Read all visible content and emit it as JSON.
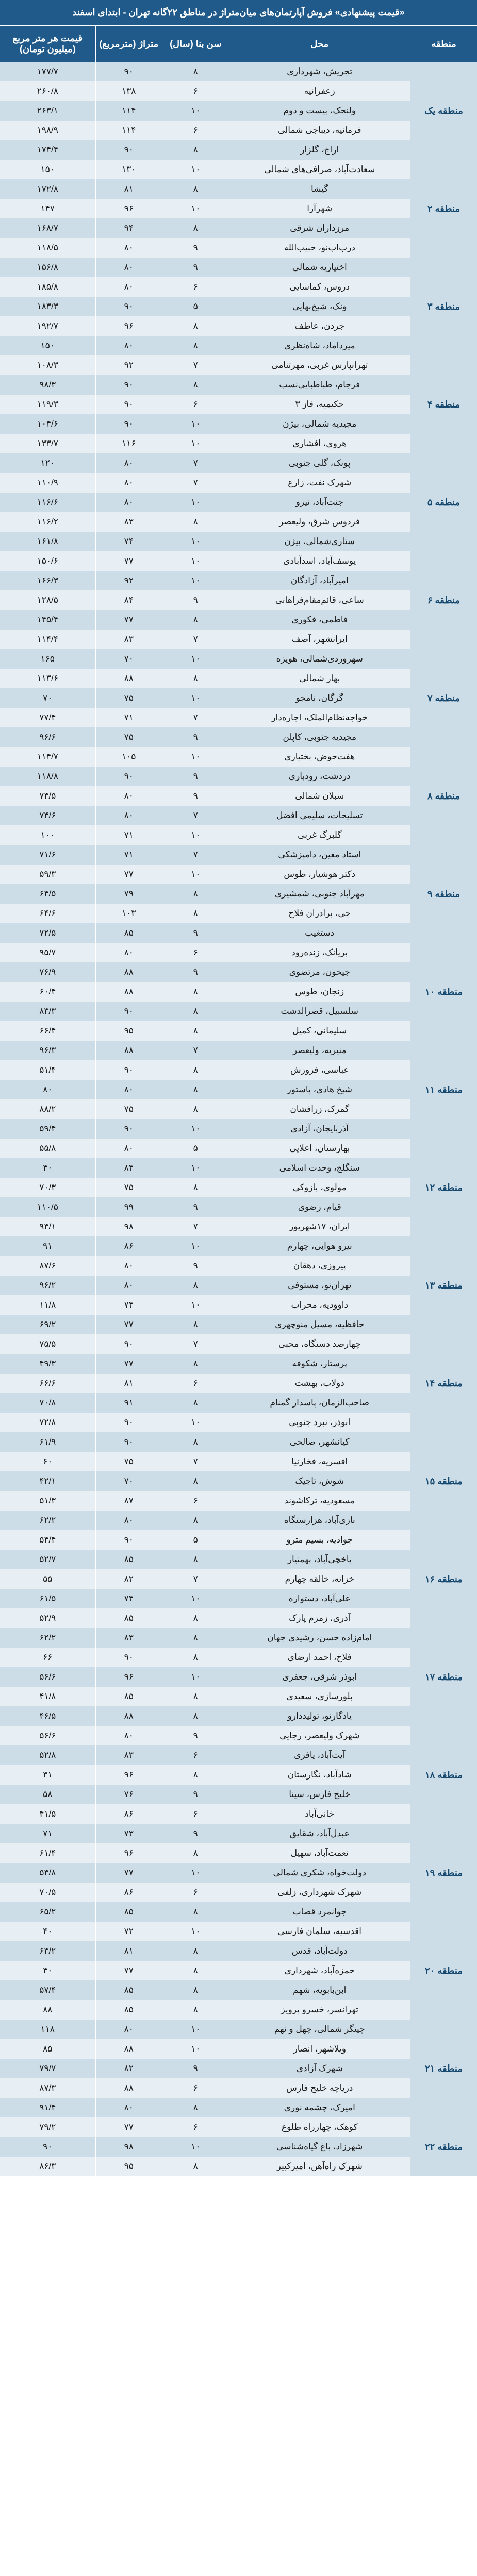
{
  "title": "«قیمت پیشنهادی» فروش آپارتمان‌های میان‌متراژ در مناطق ۲۲گانه تهران - ابتدای اسفند",
  "colors": {
    "header_bg": "#1f5a8a",
    "header_text": "#ffffff",
    "row_odd_bg": "#cddde8",
    "row_even_bg": "#e8eff4",
    "text": "#1a1a1a",
    "region_text": "#16496f"
  },
  "fonts": {
    "header_size_pt": 18,
    "cell_size_pt": 17
  },
  "columns": [
    {
      "key": "region",
      "label": "منطقه",
      "width_pct": 14
    },
    {
      "key": "neighborhood",
      "label": "محل",
      "width_pct": 38
    },
    {
      "key": "age",
      "label": "سن بنا (سال)",
      "width_pct": 14
    },
    {
      "key": "area",
      "label": "متراژ (مترمربع)",
      "width_pct": 14
    },
    {
      "key": "price",
      "label": "قیمت هر متر مربع (میلیون تومان)",
      "width_pct": 20
    }
  ],
  "regions": [
    {
      "name": "منطقه یک",
      "rows": [
        {
          "neighborhood": "تجریش، شهرداری",
          "age": "۸",
          "area": "۹۰",
          "price": "۱۷۷/۷"
        },
        {
          "neighborhood": "زعفرانیه",
          "age": "۶",
          "area": "۱۳۸",
          "price": "۲۶۰/۸"
        },
        {
          "neighborhood": "ولنجک، بیست و دوم",
          "age": "۱۰",
          "area": "۱۱۴",
          "price": "۲۶۳/۱"
        },
        {
          "neighborhood": "فرمانیه، دیباجی شمالی",
          "age": "۶",
          "area": "۱۱۴",
          "price": "۱۹۸/۹"
        },
        {
          "neighborhood": "اراج، گلزار",
          "age": "۸",
          "area": "۹۰",
          "price": "۱۷۴/۴"
        }
      ]
    },
    {
      "name": "منطقه ۲",
      "rows": [
        {
          "neighborhood": "سعادت‌آباد، صرافی‌های شمالی",
          "age": "۱۰",
          "area": "۱۳۰",
          "price": "۱۵۰"
        },
        {
          "neighborhood": "گیشا",
          "age": "۸",
          "area": "۸۱",
          "price": "۱۷۲/۸"
        },
        {
          "neighborhood": "شهرآرا",
          "age": "۱۰",
          "area": "۹۶",
          "price": "۱۴۷"
        },
        {
          "neighborhood": "مرزداران شرقی",
          "age": "۸",
          "area": "۹۴",
          "price": "۱۶۸/۷"
        },
        {
          "neighborhood": "درب‌اب‌نو، حبیب‌الله",
          "age": "۹",
          "area": "۸۰",
          "price": "۱۱۸/۵"
        }
      ]
    },
    {
      "name": "منطقه ۳",
      "rows": [
        {
          "neighborhood": "اختیاریه شمالی",
          "age": "۹",
          "area": "۸۰",
          "price": "۱۵۶/۸"
        },
        {
          "neighborhood": "دروس، کماسایی",
          "age": "۶",
          "area": "۸۰",
          "price": "۱۸۵/۸"
        },
        {
          "neighborhood": "ونک، شیخ‌بهایی",
          "age": "۵",
          "area": "۹۰",
          "price": "۱۸۳/۳"
        },
        {
          "neighborhood": "جردن، ‌عاطف",
          "age": "۸",
          "area": "۹۶",
          "price": "۱۹۲/۷"
        },
        {
          "neighborhood": "میرداماد، شاه‌نظری",
          "age": "۸",
          "area": "۸۰",
          "price": "۱۵۰"
        }
      ]
    },
    {
      "name": "منطقه ۴",
      "rows": [
        {
          "neighborhood": "تهرانپارس غربی، مهرتنامی",
          "age": "۷",
          "area": "۹۲",
          "price": "۱۰۸/۳"
        },
        {
          "neighborhood": "فرجام، طباطبایی‌نسب",
          "age": "۸",
          "area": "۹۰",
          "price": "۹۸/۳"
        },
        {
          "neighborhood": "حکیمیه، فاز ۳",
          "age": "۶",
          "area": "۹۰",
          "price": "۱۱۹/۳"
        },
        {
          "neighborhood": "مجیدیه شمالی، بیژن",
          "age": "۱۰",
          "area": "۹۰",
          "price": "۱۰۴/۶"
        },
        {
          "neighborhood": "هروی، افشاری",
          "age": "۱۰",
          "area": "۱۱۶",
          "price": "۱۳۳/۷"
        }
      ]
    },
    {
      "name": "منطقه ۵",
      "rows": [
        {
          "neighborhood": "پونک، گلی جنوبی",
          "age": "۷",
          "area": "۸۰",
          "price": "۱۲۰"
        },
        {
          "neighborhood": "شهرک نفت، زارع",
          "age": "۷",
          "area": "۸۰",
          "price": "۱۱۰/۹"
        },
        {
          "neighborhood": "جنت‌آباد، نیرو",
          "age": "۱۰",
          "area": "۸۰",
          "price": "۱۱۶/۶"
        },
        {
          "neighborhood": "فردوس شرق، ولیعصر",
          "age": "۸",
          "area": "۸۳",
          "price": "۱۱۶/۲"
        },
        {
          "neighborhood": "ستاری‌شمالی، بیژن",
          "age": "۱۰",
          "area": "۷۴",
          "price": "۱۶۱/۸"
        }
      ]
    },
    {
      "name": "منطقه ۶",
      "rows": [
        {
          "neighborhood": "یوسف‌آباد، اسدآبادی",
          "age": "۱۰",
          "area": "۷۷",
          "price": "۱۵۰/۶"
        },
        {
          "neighborhood": "امیرآباد، آزادگان",
          "age": "۱۰",
          "area": "۹۲",
          "price": "۱۶۶/۳"
        },
        {
          "neighborhood": "ساعی، قائم‌مقام‌فراهانی",
          "age": "۹",
          "area": "۸۴",
          "price": "۱۲۸/۵"
        },
        {
          "neighborhood": "فاطمی، فکوری",
          "age": "۸",
          "area": "۷۷",
          "price": "۱۴۵/۴"
        },
        {
          "neighborhood": "ایرانشهر، آصف",
          "age": "۷",
          "area": "۸۳",
          "price": "۱۱۴/۴"
        }
      ]
    },
    {
      "name": "منطقه ۷",
      "rows": [
        {
          "neighborhood": "سهروردی‌شمالی، هویزه",
          "age": "۱۰",
          "area": "۷۰",
          "price": "۱۶۵"
        },
        {
          "neighborhood": "بهار شمالی",
          "age": "۸",
          "area": "۸۸",
          "price": "۱۱۳/۶"
        },
        {
          "neighborhood": "گرگان، نامجو",
          "age": "۱۰",
          "area": "۷۵",
          "price": "۷۰"
        },
        {
          "neighborhood": "خواجه‌نظام‌الملک، اجاره‌دار",
          "age": "۷",
          "area": "۷۱",
          "price": "۷۷/۴"
        },
        {
          "neighborhood": "مجیدیه جنوبی، کاپلن",
          "age": "۹",
          "area": "۷۵",
          "price": "۹۶/۶"
        }
      ]
    },
    {
      "name": "منطقه ۸",
      "rows": [
        {
          "neighborhood": "هفت‌حوض، بختیاری",
          "age": "۱۰",
          "area": "۱۰۵",
          "price": "۱۱۴/۷"
        },
        {
          "neighborhood": "دردشت، رودباری",
          "age": "۹",
          "area": "۹۰",
          "price": "۱۱۸/۸"
        },
        {
          "neighborhood": "سبلان شمالی",
          "age": "۹",
          "area": "۸۰",
          "price": "۷۳/۵"
        },
        {
          "neighborhood": "تسلیحات، سلیمی افضل",
          "age": "۷",
          "area": "۸۰",
          "price": "۷۴/۶"
        },
        {
          "neighborhood": "گلبرگ غربی",
          "age": "۱۰",
          "area": "۷۱",
          "price": "۱۰۰"
        }
      ]
    },
    {
      "name": "منطقه ۹",
      "rows": [
        {
          "neighborhood": "استاد معین، دامپزشکی",
          "age": "۷",
          "area": "۷۱",
          "price": "۷۱/۶"
        },
        {
          "neighborhood": "دکتر هوشیار، طوس",
          "age": "۱۰",
          "area": "۷۷",
          "price": "۵۹/۳"
        },
        {
          "neighborhood": "مهرآباد جنوبی، شمشیری",
          "age": "۸",
          "area": "۷۹",
          "price": "۶۴/۵"
        },
        {
          "neighborhood": "جی، برادران فلاح",
          "age": "۸",
          "area": "۱۰۳",
          "price": "۶۴/۶"
        },
        {
          "neighborhood": "دستغیب",
          "age": "۹",
          "area": "۸۵",
          "price": "۷۲/۵"
        }
      ]
    },
    {
      "name": "منطقه ۱۰",
      "rows": [
        {
          "neighborhood": "بریانک، زنده‌رود",
          "age": "۶",
          "area": "۸۰",
          "price": "۹۵/۷"
        },
        {
          "neighborhood": "جیحون، مرتضوی",
          "age": "۹",
          "area": "۸۸",
          "price": "۷۶/۹"
        },
        {
          "neighborhood": "زنجان، طوس",
          "age": "۸",
          "area": "۸۸",
          "price": "۶۰/۴"
        },
        {
          "neighborhood": "سلسبیل، قصرالدشت",
          "age": "۸",
          "area": "۹۰",
          "price": "۸۳/۳"
        },
        {
          "neighborhood": "سلیمانی، کمیل",
          "age": "۸",
          "area": "۹۵",
          "price": "۶۶/۴"
        }
      ]
    },
    {
      "name": "منطقه ۱۱",
      "rows": [
        {
          "neighborhood": "منیریه، ولیعصر",
          "age": "۷",
          "area": "۸۸",
          "price": "۹۶/۳"
        },
        {
          "neighborhood": "عباسی، فروزش",
          "age": "۸",
          "area": "۹۰",
          "price": "۵۱/۴"
        },
        {
          "neighborhood": "شیخ هادی، پاستور",
          "age": "۸",
          "area": "۸۰",
          "price": "۸۰"
        },
        {
          "neighborhood": "گمرک، زرافشان",
          "age": "۸",
          "area": "۷۵",
          "price": "۸۸/۲"
        },
        {
          "neighborhood": "آذربایجان، آزادی",
          "age": "۱۰",
          "area": "۹۰",
          "price": "۵۹/۴"
        }
      ]
    },
    {
      "name": "منطقه ۱۲",
      "rows": [
        {
          "neighborhood": "بهارستان، اعلایی",
          "age": "۵",
          "area": "۸۰",
          "price": "۵۵/۸"
        },
        {
          "neighborhood": "سنگلج، وحدت اسلامی",
          "age": "۱۰",
          "area": "۸۴",
          "price": "۴۰"
        },
        {
          "neighborhood": "مولوی، بازوکی",
          "age": "۸",
          "area": "۷۵",
          "price": "۷۰/۳"
        },
        {
          "neighborhood": "قیام، رضوی",
          "age": "۹",
          "area": "۹۹",
          "price": "۱۱۰/۵"
        },
        {
          "neighborhood": "ایران، ۱۷شهریور",
          "age": "۷",
          "area": "۹۸",
          "price": "۹۳/۱"
        }
      ]
    },
    {
      "name": "منطقه ۱۳",
      "rows": [
        {
          "neighborhood": "نیرو هوایی، چهارم",
          "age": "۱۰",
          "area": "۸۶",
          "price": "۹۱"
        },
        {
          "neighborhood": "پیروزی، دهقان",
          "age": "۹",
          "area": "۸۰",
          "price": "۸۷/۶"
        },
        {
          "neighborhood": "تهران‌نو، مستوفی",
          "age": "۸",
          "area": "۸۰",
          "price": "۹۶/۲"
        },
        {
          "neighborhood": "داوودیه، محراب",
          "age": "۱۰",
          "area": "۷۴",
          "price": "۱۱/۸"
        },
        {
          "neighborhood": "حافظیه، مسیل منوچهری",
          "age": "۸",
          "area": "۷۷",
          "price": "۶۹/۲"
        }
      ]
    },
    {
      "name": "منطقه ۱۴",
      "rows": [
        {
          "neighborhood": "چهارصد دستگاه، محبی",
          "age": "۷",
          "area": "۹۰",
          "price": "۷۵/۵"
        },
        {
          "neighborhood": "پرستار، شکوفه",
          "age": "۸",
          "area": "۷۷",
          "price": "۴۹/۳"
        },
        {
          "neighborhood": "دولاب، بهشت",
          "age": "۶",
          "area": "۸۱",
          "price": "۶۶/۶"
        },
        {
          "neighborhood": "صاحب‌الزمان، پاسدار گمنام",
          "age": "۸",
          "area": "۹۱",
          "price": "۷۰/۸"
        },
        {
          "neighborhood": "ابوذر، نبرد جنوبی",
          "age": "۱۰",
          "area": "۹۰",
          "price": "۷۲/۸"
        }
      ]
    },
    {
      "name": "منطقه ۱۵",
      "rows": [
        {
          "neighborhood": "کیانشهر، صالحی",
          "age": "۸",
          "area": "۹۰",
          "price": "۶۱/۹"
        },
        {
          "neighborhood": "افسریه، فخارنیا",
          "age": "۷",
          "area": "۷۵",
          "price": "۶۰"
        },
        {
          "neighborhood": "شوش، تاجیک",
          "age": "۸",
          "area": "۷۰",
          "price": "۴۲/۱"
        },
        {
          "neighborhood": "مسعودیه، ترکاشوند",
          "age": "۶",
          "area": "۸۷",
          "price": "۵۱/۳"
        },
        {
          "neighborhood": "نازی‌آباد، هزارستگاه",
          "age": "۸",
          "area": "۸۰",
          "price": "۶۲/۲"
        }
      ]
    },
    {
      "name": "منطقه ۱۶",
      "rows": [
        {
          "neighborhood": "جوادیه، بسیم مترو",
          "age": "۵",
          "area": "۹۰",
          "price": "۵۴/۴"
        },
        {
          "neighborhood": "یاخچی‌آباد، بهمنیار",
          "age": "۸",
          "area": "۸۵",
          "price": "۵۲/۷"
        },
        {
          "neighborhood": "خزانه، خالقه چهارم",
          "age": "۷",
          "area": "۸۲",
          "price": "۵۵"
        },
        {
          "neighborhood": "علی‌آباد، دستواره",
          "age": "۱۰",
          "area": "۷۴",
          "price": "۶۱/۵"
        },
        {
          "neighborhood": "آذری، زمزم پارک",
          "age": "۸",
          "area": "۸۵",
          "price": "۵۲/۹"
        }
      ]
    },
    {
      "name": "منطقه ۱۷",
      "rows": [
        {
          "neighborhood": "امام‌زاده حسن، رشیدی جهان",
          "age": "۸",
          "area": "۸۳",
          "price": "۶۲/۲"
        },
        {
          "neighborhood": "فلاح، احمد ارضای",
          "age": "۸",
          "area": "۹۰",
          "price": "۶۶"
        },
        {
          "neighborhood": "ابوذر شرقی، جعفری",
          "age": "۱۰",
          "area": "۹۶",
          "price": "۵۶/۶"
        },
        {
          "neighborhood": "بلورسازی، سعیدی",
          "age": "۸",
          "area": "۸۵",
          "price": "۴۱/۸"
        },
        {
          "neighborhood": "یادگارنو، تولیددارو",
          "age": "۸",
          "area": "۸۸",
          "price": "۴۶/۵"
        }
      ]
    },
    {
      "name": "منطقه ۱۸",
      "rows": [
        {
          "neighborhood": "شهرک ولیعصر، رجایی",
          "age": "۹",
          "area": "۸۰",
          "price": "۵۶/۶"
        },
        {
          "neighborhood": "آیت‌آباد، یافری",
          "age": "۶",
          "area": "۸۳",
          "price": "۵۲/۸"
        },
        {
          "neighborhood": "شادآباد، نگارستان",
          "age": "۸",
          "area": "۹۶",
          "price": "۳۱"
        },
        {
          "neighborhood": "خلیج فارس، سینا",
          "age": "۹",
          "area": "۷۶",
          "price": "۵۸"
        },
        {
          "neighborhood": "خانی‌آباد",
          "age": "۶",
          "area": "۸۶",
          "price": "۴۱/۵"
        }
      ]
    },
    {
      "name": "منطقه ۱۹",
      "rows": [
        {
          "neighborhood": "عبدل‌آباد، شقایق",
          "age": "۹",
          "area": "۷۳",
          "price": "۷۱"
        },
        {
          "neighborhood": "نعمت‌آباد، سهیل",
          "age": "۸",
          "area": "۹۶",
          "price": "۶۱/۴"
        },
        {
          "neighborhood": "دولت‌خواه، شکری شمالی",
          "age": "۱۰",
          "area": "۷۷",
          "price": "۵۳/۸"
        },
        {
          "neighborhood": "شهرک شهرداری، زلفی",
          "age": "۶",
          "area": "۸۶",
          "price": "۷۰/۵"
        },
        {
          "neighborhood": "جوانمرد قصاب",
          "age": "۸",
          "area": "۸۵",
          "price": "۶۵/۲"
        }
      ]
    },
    {
      "name": "منطقه ۲۰",
      "rows": [
        {
          "neighborhood": "اقدسیه، سلمان فارسی",
          "age": "۱۰",
          "area": "۷۲",
          "price": "۴۰"
        },
        {
          "neighborhood": "دولت‌آباد، قدس",
          "age": "۸",
          "area": "۸۱",
          "price": "۶۳/۲"
        },
        {
          "neighborhood": "حمزه‌آباد، شهرداری",
          "age": "۸",
          "area": "۷۷",
          "price": "۴۰"
        },
        {
          "neighborhood": "ابن‌بابویه، شهم",
          "age": "۸",
          "area": "۸۵",
          "price": "۵۷/۴"
        },
        {
          "neighborhood": "تهرانسر، خسرو پرویز",
          "age": "۸",
          "area": "۸۵",
          "price": "۸۸"
        }
      ]
    },
    {
      "name": "منطقه ۲۱",
      "rows": [
        {
          "neighborhood": "چیتگر شمالی، چهل و نهم",
          "age": "۱۰",
          "area": "۸۰",
          "price": "۱۱۸"
        },
        {
          "neighborhood": "ویلاشهر، انصار",
          "age": "۱۰",
          "area": "۸۸",
          "price": "۸۵"
        },
        {
          "neighborhood": "شهرک آزادی",
          "age": "۹",
          "area": "۸۲",
          "price": "۷۹/۷"
        },
        {
          "neighborhood": "دریاچه خلیج فارس",
          "age": "۶",
          "area": "۸۸",
          "price": "۸۷/۳"
        },
        {
          "neighborhood": "امیرک، چشمه نوری",
          "age": "۸",
          "area": "۸۰",
          "price": "۹۱/۴"
        }
      ]
    },
    {
      "name": "منطقه ۲۲",
      "rows": [
        {
          "neighborhood": "کوهک، چهارراه طلوع",
          "age": "۶",
          "area": "۷۷",
          "price": "۷۹/۲"
        },
        {
          "neighborhood": "شهرزاد، باغ گیاه‌شناسی",
          "age": "۱۰",
          "area": "۹۸",
          "price": "۹۰"
        },
        {
          "neighborhood": "شهرک راه‌آهن، امیرکبیر",
          "age": "۸",
          "area": "۹۵",
          "price": "۸۶/۳"
        }
      ]
    }
  ]
}
